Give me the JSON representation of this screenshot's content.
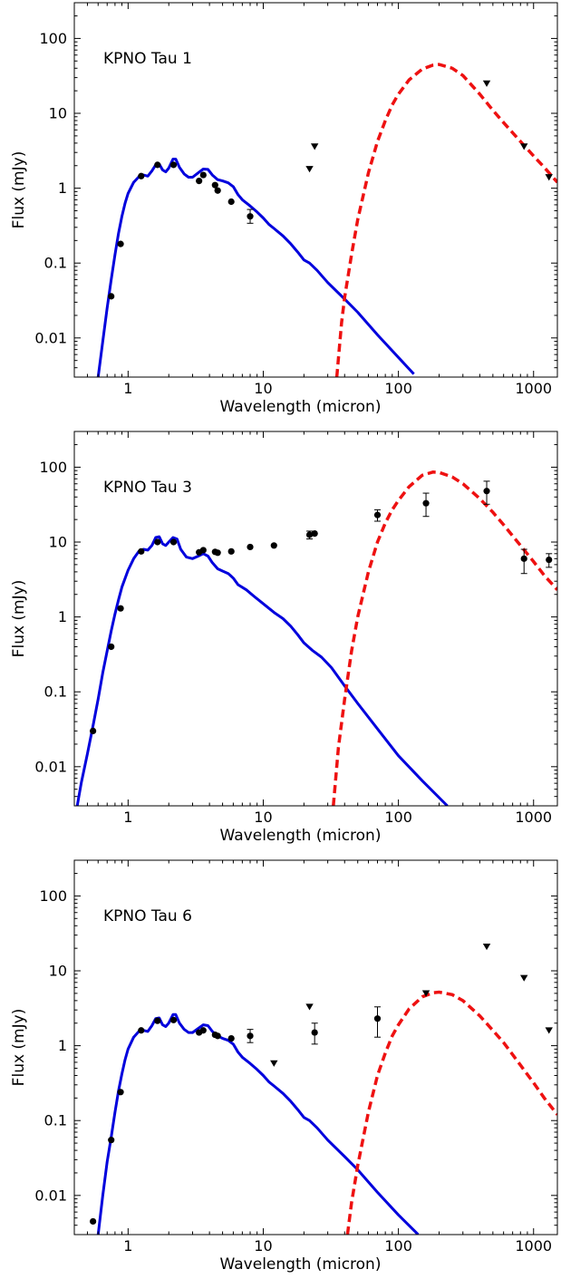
{
  "chart_data": [
    {
      "type": "scatter",
      "title": "KPNO Tau 1",
      "xlabel": "Wavelength (micron)",
      "ylabel": "Flux (mJy)",
      "xscale": "log",
      "yscale": "log",
      "xlim": [
        0.4,
        1500
      ],
      "ylim": [
        0.003,
        300
      ],
      "xticks": [
        {
          "v": 1,
          "label": "1"
        },
        {
          "v": 10,
          "label": "10"
        },
        {
          "v": 100,
          "label": "100"
        },
        {
          "v": 1000,
          "label": "1000"
        }
      ],
      "yticks": [
        {
          "v": 0.01,
          "label": "0.01"
        },
        {
          "v": 0.1,
          "label": "0.1"
        },
        {
          "v": 1,
          "label": "1"
        },
        {
          "v": 10,
          "label": "10"
        },
        {
          "v": 100,
          "label": "100"
        }
      ],
      "legend": "none",
      "grid": false,
      "photosphere_color": "#0000dd",
      "disk_color": "#ee1111",
      "detections": [
        {
          "x": 0.75,
          "y": 0.036
        },
        {
          "x": 0.88,
          "y": 0.18
        },
        {
          "x": 1.25,
          "y": 1.45
        },
        {
          "x": 1.65,
          "y": 2.05
        },
        {
          "x": 2.17,
          "y": 2.05
        },
        {
          "x": 3.35,
          "y": 1.25
        },
        {
          "x": 3.6,
          "y": 1.5
        },
        {
          "x": 4.4,
          "y": 1.1
        },
        {
          "x": 4.6,
          "y": 0.93
        },
        {
          "x": 5.8,
          "y": 0.66
        },
        {
          "x": 8.0,
          "y": 0.42,
          "lo": 0.34,
          "hi": 0.52
        }
      ],
      "upper_limits": [
        {
          "x": 22,
          "y": 1.8
        },
        {
          "x": 24,
          "y": 3.6
        },
        {
          "x": 450,
          "y": 25
        },
        {
          "x": 850,
          "y": 3.6
        },
        {
          "x": 1300,
          "y": 1.4
        }
      ],
      "photosphere_model": [
        [
          0.6,
          0.003
        ],
        [
          0.65,
          0.009
        ],
        [
          0.7,
          0.025
        ],
        [
          0.75,
          0.06
        ],
        [
          0.8,
          0.13
        ],
        [
          0.85,
          0.25
        ],
        [
          0.9,
          0.42
        ],
        [
          0.95,
          0.63
        ],
        [
          1.0,
          0.85
        ],
        [
          1.1,
          1.2
        ],
        [
          1.2,
          1.42
        ],
        [
          1.3,
          1.5
        ],
        [
          1.4,
          1.45
        ],
        [
          1.5,
          1.7
        ],
        [
          1.6,
          2.05
        ],
        [
          1.7,
          2.1
        ],
        [
          1.8,
          1.75
        ],
        [
          1.9,
          1.65
        ],
        [
          2.0,
          1.85
        ],
        [
          2.15,
          2.45
        ],
        [
          2.25,
          2.45
        ],
        [
          2.4,
          1.9
        ],
        [
          2.6,
          1.55
        ],
        [
          2.8,
          1.4
        ],
        [
          3.0,
          1.4
        ],
        [
          3.3,
          1.6
        ],
        [
          3.6,
          1.8
        ],
        [
          3.9,
          1.78
        ],
        [
          4.2,
          1.5
        ],
        [
          4.6,
          1.3
        ],
        [
          5.0,
          1.25
        ],
        [
          5.5,
          1.18
        ],
        [
          6.0,
          1.05
        ],
        [
          6.5,
          0.82
        ],
        [
          7.0,
          0.7
        ],
        [
          8.0,
          0.58
        ],
        [
          9.0,
          0.48
        ],
        [
          10.0,
          0.4
        ],
        [
          11.0,
          0.33
        ],
        [
          12.0,
          0.29
        ],
        [
          14.0,
          0.23
        ],
        [
          16.0,
          0.18
        ],
        [
          18.0,
          0.14
        ],
        [
          20.0,
          0.11
        ],
        [
          22.0,
          0.1
        ],
        [
          25.0,
          0.08
        ],
        [
          30.0,
          0.055
        ],
        [
          40.0,
          0.033
        ],
        [
          50.0,
          0.022
        ],
        [
          70.0,
          0.011
        ],
        [
          100.0,
          0.0055
        ],
        [
          130.0,
          0.0033
        ]
      ],
      "disk_model": [
        [
          35,
          0.003
        ],
        [
          38,
          0.016
        ],
        [
          40,
          0.035
        ],
        [
          45,
          0.13
        ],
        [
          50,
          0.38
        ],
        [
          60,
          1.6
        ],
        [
          70,
          4.2
        ],
        [
          80,
          8.0
        ],
        [
          90,
          13.0
        ],
        [
          100,
          18.0
        ],
        [
          120,
          28.0
        ],
        [
          150,
          39.0
        ],
        [
          180,
          44.0
        ],
        [
          200,
          45.0
        ],
        [
          250,
          40.0
        ],
        [
          300,
          32.0
        ],
        [
          400,
          18.0
        ],
        [
          500,
          11.0
        ],
        [
          600,
          7.5
        ],
        [
          800,
          4.2
        ],
        [
          1000,
          2.7
        ],
        [
          1200,
          1.9
        ],
        [
          1500,
          1.2
        ]
      ]
    },
    {
      "type": "scatter",
      "title": "KPNO Tau 3",
      "xlabel": "Wavelength (micron)",
      "ylabel": "Flux (mJy)",
      "xscale": "log",
      "yscale": "log",
      "xlim": [
        0.4,
        1500
      ],
      "ylim": [
        0.003,
        300
      ],
      "xticks": [
        {
          "v": 1,
          "label": "1"
        },
        {
          "v": 10,
          "label": "10"
        },
        {
          "v": 100,
          "label": "100"
        },
        {
          "v": 1000,
          "label": "1000"
        }
      ],
      "yticks": [
        {
          "v": 0.01,
          "label": "0.01"
        },
        {
          "v": 0.1,
          "label": "0.1"
        },
        {
          "v": 1,
          "label": "1"
        },
        {
          "v": 10,
          "label": "10"
        },
        {
          "v": 100,
          "label": "100"
        }
      ],
      "legend": "none",
      "grid": false,
      "photosphere_color": "#0000dd",
      "disk_color": "#ee1111",
      "detections": [
        {
          "x": 0.55,
          "y": 0.03
        },
        {
          "x": 0.75,
          "y": 0.4
        },
        {
          "x": 0.88,
          "y": 1.3
        },
        {
          "x": 1.25,
          "y": 7.5
        },
        {
          "x": 1.65,
          "y": 10.0
        },
        {
          "x": 2.17,
          "y": 10.0
        },
        {
          "x": 3.35,
          "y": 7.3
        },
        {
          "x": 3.6,
          "y": 7.8
        },
        {
          "x": 4.4,
          "y": 7.4
        },
        {
          "x": 4.6,
          "y": 7.2
        },
        {
          "x": 5.8,
          "y": 7.5
        },
        {
          "x": 8.0,
          "y": 8.6
        },
        {
          "x": 12.0,
          "y": 9.0
        },
        {
          "x": 22.0,
          "y": 12.5,
          "lo": 11.0,
          "hi": 14.0
        },
        {
          "x": 24.0,
          "y": 13.0
        },
        {
          "x": 70.0,
          "y": 23.0,
          "lo": 19.0,
          "hi": 27.0
        },
        {
          "x": 160.0,
          "y": 33.0,
          "lo": 22.0,
          "hi": 45.0
        },
        {
          "x": 450.0,
          "y": 48.0,
          "lo": 32.0,
          "hi": 65.0
        },
        {
          "x": 850.0,
          "y": 6.0,
          "lo": 3.8,
          "hi": 8.0
        },
        {
          "x": 1300.0,
          "y": 5.8,
          "lo": 4.6,
          "hi": 7.0
        }
      ],
      "upper_limits": [],
      "photosphere_model": [
        [
          0.42,
          0.003
        ],
        [
          0.45,
          0.006
        ],
        [
          0.5,
          0.015
        ],
        [
          0.55,
          0.035
        ],
        [
          0.6,
          0.08
        ],
        [
          0.65,
          0.18
        ],
        [
          0.7,
          0.35
        ],
        [
          0.75,
          0.65
        ],
        [
          0.8,
          1.1
        ],
        [
          0.85,
          1.7
        ],
        [
          0.9,
          2.5
        ],
        [
          1.0,
          4.2
        ],
        [
          1.1,
          6.0
        ],
        [
          1.2,
          7.5
        ],
        [
          1.3,
          8.0
        ],
        [
          1.4,
          7.8
        ],
        [
          1.5,
          9.0
        ],
        [
          1.6,
          11.5
        ],
        [
          1.7,
          11.8
        ],
        [
          1.8,
          9.5
        ],
        [
          1.9,
          9.0
        ],
        [
          2.0,
          10.0
        ],
        [
          2.15,
          11.5
        ],
        [
          2.3,
          11.0
        ],
        [
          2.45,
          8.0
        ],
        [
          2.7,
          6.3
        ],
        [
          3.0,
          6.0
        ],
        [
          3.3,
          6.5
        ],
        [
          3.6,
          7.0
        ],
        [
          3.9,
          6.5
        ],
        [
          4.2,
          5.3
        ],
        [
          4.6,
          4.4
        ],
        [
          5.0,
          4.1
        ],
        [
          5.5,
          3.8
        ],
        [
          6.0,
          3.3
        ],
        [
          6.5,
          2.7
        ],
        [
          7.5,
          2.3
        ],
        [
          8.5,
          1.9
        ],
        [
          10.0,
          1.5
        ],
        [
          12.0,
          1.15
        ],
        [
          14.0,
          0.95
        ],
        [
          16.0,
          0.75
        ],
        [
          18.0,
          0.58
        ],
        [
          20.0,
          0.45
        ],
        [
          23.0,
          0.36
        ],
        [
          27.0,
          0.29
        ],
        [
          32.0,
          0.21
        ],
        [
          40.0,
          0.12
        ],
        [
          50.0,
          0.07
        ],
        [
          70.0,
          0.032
        ],
        [
          100.0,
          0.014
        ],
        [
          150.0,
          0.0065
        ],
        [
          230.0,
          0.003
        ]
      ],
      "disk_model": [
        [
          33,
          0.003
        ],
        [
          36,
          0.018
        ],
        [
          40,
          0.08
        ],
        [
          45,
          0.35
        ],
        [
          50,
          1.0
        ],
        [
          60,
          4.0
        ],
        [
          70,
          10.0
        ],
        [
          80,
          18.0
        ],
        [
          90,
          27.0
        ],
        [
          100,
          36.0
        ],
        [
          120,
          55.0
        ],
        [
          150,
          78.0
        ],
        [
          180,
          86.0
        ],
        [
          200,
          85.0
        ],
        [
          250,
          74.0
        ],
        [
          300,
          60.0
        ],
        [
          400,
          38.0
        ],
        [
          500,
          25.0
        ],
        [
          600,
          17.0
        ],
        [
          800,
          9.0
        ],
        [
          1000,
          5.5
        ],
        [
          1200,
          3.6
        ],
        [
          1500,
          2.3
        ]
      ]
    },
    {
      "type": "scatter",
      "title": "KPNO Tau 6",
      "xlabel": "Wavelength (micron)",
      "ylabel": "Flux (mJy)",
      "xscale": "log",
      "yscale": "log",
      "xlim": [
        0.4,
        1500
      ],
      "ylim": [
        0.003,
        300
      ],
      "xticks": [
        {
          "v": 1,
          "label": "1"
        },
        {
          "v": 10,
          "label": "10"
        },
        {
          "v": 100,
          "label": "100"
        },
        {
          "v": 1000,
          "label": "1000"
        }
      ],
      "yticks": [
        {
          "v": 0.01,
          "label": "0.01"
        },
        {
          "v": 0.1,
          "label": "0.1"
        },
        {
          "v": 1,
          "label": "1"
        },
        {
          "v": 10,
          "label": "10"
        },
        {
          "v": 100,
          "label": "100"
        }
      ],
      "legend": "none",
      "grid": false,
      "photosphere_color": "#0000dd",
      "disk_color": "#ee1111",
      "detections": [
        {
          "x": 0.55,
          "y": 0.0045
        },
        {
          "x": 0.75,
          "y": 0.055
        },
        {
          "x": 0.88,
          "y": 0.24
        },
        {
          "x": 1.25,
          "y": 1.6
        },
        {
          "x": 1.65,
          "y": 2.15
        },
        {
          "x": 2.17,
          "y": 2.2
        },
        {
          "x": 3.35,
          "y": 1.5
        },
        {
          "x": 3.6,
          "y": 1.6
        },
        {
          "x": 4.4,
          "y": 1.4
        },
        {
          "x": 4.6,
          "y": 1.35
        },
        {
          "x": 5.8,
          "y": 1.25
        },
        {
          "x": 8.0,
          "y": 1.35,
          "lo": 1.1,
          "hi": 1.65
        },
        {
          "x": 24.0,
          "y": 1.5,
          "lo": 1.05,
          "hi": 2.0
        },
        {
          "x": 70.0,
          "y": 2.3,
          "lo": 1.3,
          "hi": 3.3
        }
      ],
      "upper_limits": [
        {
          "x": 12,
          "y": 0.58
        },
        {
          "x": 22,
          "y": 3.3
        },
        {
          "x": 160,
          "y": 5.0
        },
        {
          "x": 450,
          "y": 21.0
        },
        {
          "x": 850,
          "y": 8.0
        },
        {
          "x": 1300,
          "y": 1.6
        }
      ],
      "photosphere_model": [
        [
          0.6,
          0.003
        ],
        [
          0.65,
          0.01
        ],
        [
          0.7,
          0.028
        ],
        [
          0.75,
          0.06
        ],
        [
          0.8,
          0.13
        ],
        [
          0.85,
          0.25
        ],
        [
          0.9,
          0.42
        ],
        [
          0.95,
          0.65
        ],
        [
          1.0,
          0.9
        ],
        [
          1.1,
          1.3
        ],
        [
          1.2,
          1.55
        ],
        [
          1.3,
          1.6
        ],
        [
          1.4,
          1.55
        ],
        [
          1.5,
          1.85
        ],
        [
          1.6,
          2.3
        ],
        [
          1.7,
          2.35
        ],
        [
          1.8,
          1.9
        ],
        [
          1.9,
          1.8
        ],
        [
          2.0,
          2.0
        ],
        [
          2.15,
          2.6
        ],
        [
          2.25,
          2.6
        ],
        [
          2.4,
          2.0
        ],
        [
          2.6,
          1.65
        ],
        [
          2.8,
          1.5
        ],
        [
          3.0,
          1.5
        ],
        [
          3.3,
          1.7
        ],
        [
          3.6,
          1.9
        ],
        [
          3.9,
          1.85
        ],
        [
          4.2,
          1.55
        ],
        [
          4.6,
          1.35
        ],
        [
          5.0,
          1.25
        ],
        [
          5.5,
          1.18
        ],
        [
          6.0,
          1.05
        ],
        [
          6.5,
          0.82
        ],
        [
          7.0,
          0.7
        ],
        [
          8.0,
          0.58
        ],
        [
          9.0,
          0.48
        ],
        [
          10.0,
          0.4
        ],
        [
          11.0,
          0.33
        ],
        [
          12.0,
          0.29
        ],
        [
          14.0,
          0.23
        ],
        [
          16.0,
          0.18
        ],
        [
          18.0,
          0.14
        ],
        [
          20.0,
          0.11
        ],
        [
          22.0,
          0.1
        ],
        [
          25.0,
          0.08
        ],
        [
          30.0,
          0.055
        ],
        [
          40.0,
          0.033
        ],
        [
          50.0,
          0.022
        ],
        [
          70.0,
          0.011
        ],
        [
          100.0,
          0.0055
        ],
        [
          140.0,
          0.003
        ]
      ],
      "disk_model": [
        [
          42,
          0.003
        ],
        [
          45,
          0.008
        ],
        [
          50,
          0.025
        ],
        [
          60,
          0.13
        ],
        [
          70,
          0.4
        ],
        [
          80,
          0.8
        ],
        [
          90,
          1.35
        ],
        [
          100,
          1.9
        ],
        [
          120,
          3.1
        ],
        [
          150,
          4.5
        ],
        [
          180,
          5.1
        ],
        [
          200,
          5.2
        ],
        [
          250,
          4.8
        ],
        [
          300,
          4.0
        ],
        [
          400,
          2.5
        ],
        [
          500,
          1.6
        ],
        [
          600,
          1.1
        ],
        [
          800,
          0.55
        ],
        [
          1000,
          0.32
        ],
        [
          1200,
          0.2
        ],
        [
          1500,
          0.12
        ]
      ]
    }
  ]
}
